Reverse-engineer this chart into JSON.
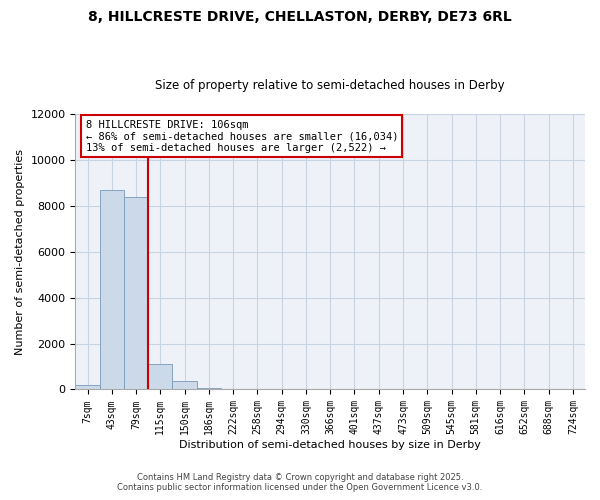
{
  "title": "8, HILLCRESTE DRIVE, CHELLASTON, DERBY, DE73 6RL",
  "subtitle": "Size of property relative to semi-detached houses in Derby",
  "xlabel": "Distribution of semi-detached houses by size in Derby",
  "ylabel": "Number of semi-detached properties",
  "bar_color": "#ccd9e8",
  "bar_edge_color": "#7799bb",
  "categories": [
    "7sqm",
    "43sqm",
    "79sqm",
    "115sqm",
    "150sqm",
    "186sqm",
    "222sqm",
    "258sqm",
    "294sqm",
    "330sqm",
    "366sqm",
    "401sqm",
    "437sqm",
    "473sqm",
    "509sqm",
    "545sqm",
    "581sqm",
    "616sqm",
    "652sqm",
    "688sqm",
    "724sqm"
  ],
  "values": [
    200,
    8700,
    8400,
    1100,
    350,
    80,
    0,
    0,
    0,
    0,
    0,
    0,
    0,
    0,
    0,
    0,
    0,
    0,
    0,
    0,
    0
  ],
  "ylim": [
    0,
    12000
  ],
  "yticks": [
    0,
    2000,
    4000,
    6000,
    8000,
    10000,
    12000
  ],
  "vline_position": 2.5,
  "property_line_label": "8 HILLCRESTE DRIVE: 106sqm",
  "annotation_line1": "← 86% of semi-detached houses are smaller (16,034)",
  "annotation_line2": "13% of semi-detached houses are larger (2,522) →",
  "vline_color": "#cc0000",
  "footer1": "Contains HM Land Registry data © Crown copyright and database right 2025.",
  "footer2": "Contains public sector information licensed under the Open Government Licence v3.0.",
  "background_color": "#ffffff",
  "plot_bg_color": "#eef2f8",
  "grid_color": "#c8d4e4"
}
